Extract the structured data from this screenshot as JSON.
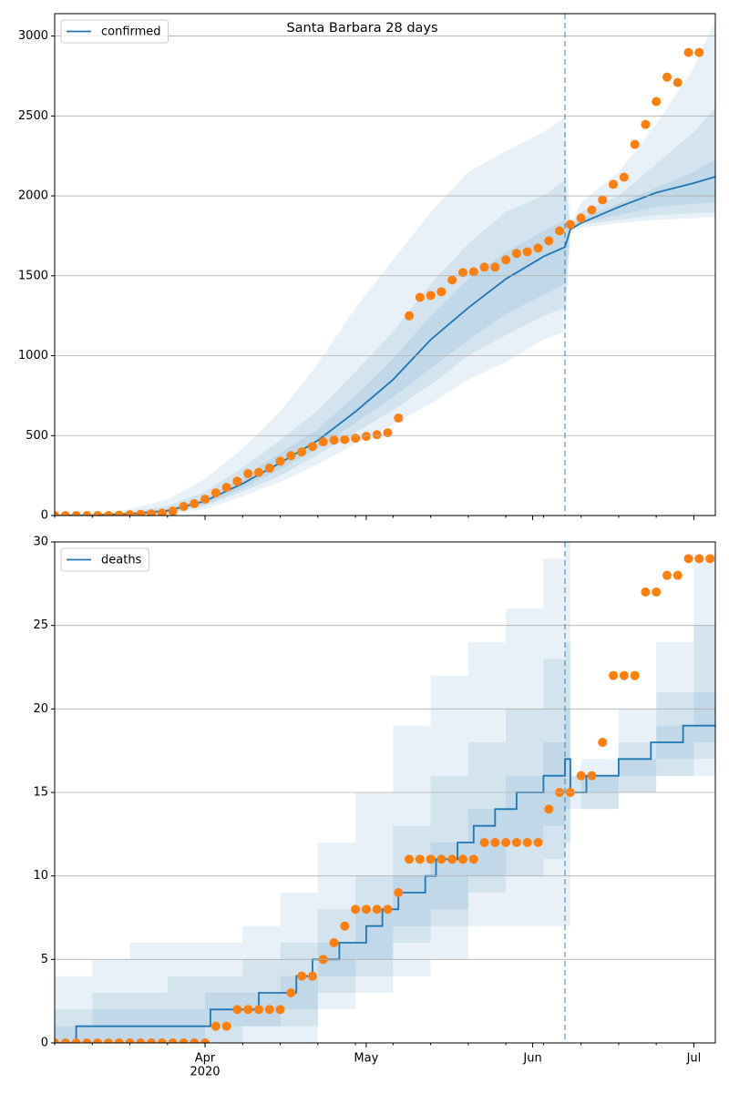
{
  "chart_data": [
    {
      "type": "line",
      "title": "Santa Barbara 28 days",
      "step": false,
      "grid": "y",
      "legend": "upper left",
      "xlim": [
        0,
        123
      ],
      "xticks": [
        28,
        58,
        89,
        119
      ],
      "ylim": [
        0,
        3140
      ],
      "yticks": [
        0,
        500,
        1000,
        1500,
        2000,
        2500,
        3000
      ],
      "vline": {
        "x": 95,
        "color": "#1f77b4",
        "style": "dashed"
      },
      "series": [
        {
          "name": "confirmed",
          "color": "#1f77b4",
          "x": [
            0,
            7,
            14,
            21,
            28,
            35,
            42,
            49,
            56,
            63,
            70,
            77,
            84,
            91,
            95,
            96,
            98,
            105,
            112,
            119,
            123
          ],
          "values": [
            0,
            2,
            10,
            30,
            90,
            200,
            330,
            470,
            650,
            850,
            1100,
            1300,
            1480,
            1620,
            1680,
            1790,
            1830,
            1930,
            2020,
            2080,
            2120
          ]
        }
      ],
      "observed": {
        "color": "#ff7f0e",
        "x": [
          0,
          2,
          4,
          6,
          8,
          10,
          12,
          14,
          16,
          18,
          20,
          22,
          24,
          26,
          28,
          30,
          32,
          34,
          36,
          38,
          40,
          42,
          44,
          46,
          48,
          50,
          52,
          54,
          56,
          58,
          60,
          62,
          64,
          66,
          68,
          70,
          72,
          74,
          76,
          78,
          80,
          82,
          84,
          86,
          88,
          90,
          92,
          94,
          96,
          98,
          100,
          102,
          104,
          106,
          108,
          110,
          112,
          114,
          116,
          118,
          120
        ],
        "values": [
          0,
          0,
          0,
          0,
          0,
          0,
          2,
          5,
          8,
          10,
          15,
          28,
          57,
          74,
          102,
          142,
          176,
          215,
          262,
          270,
          296,
          340,
          375,
          398,
          432,
          461,
          472,
          475,
          484,
          495,
          506,
          518,
          610,
          1250,
          1365,
          1377,
          1400,
          1474,
          1520,
          1525,
          1554,
          1554,
          1600,
          1640,
          1650,
          1673,
          1719,
          1781,
          1821,
          1861,
          1912,
          1975,
          2072,
          2117,
          2322,
          2447,
          2590,
          2743,
          2709,
          2897,
          2897
        ]
      },
      "bands": [
        {
          "color": "#1f77b4",
          "x": [
            0,
            7,
            14,
            21,
            28,
            35,
            42,
            49,
            56,
            63,
            70,
            77,
            84,
            91,
            95,
            96,
            98,
            105,
            112,
            119,
            123
          ],
          "lower": [
            0,
            0,
            0,
            5,
            40,
            120,
            210,
            320,
            450,
            570,
            700,
            850,
            960,
            1100,
            1150,
            1780,
            1800,
            1830,
            1850,
            1860,
            1870
          ],
          "upper": [
            0,
            10,
            40,
            100,
            230,
            420,
            650,
            950,
            1300,
            1600,
            1900,
            2150,
            2280,
            2400,
            2490,
            1810,
            1960,
            2150,
            2450,
            2800,
            3100
          ]
        },
        {
          "color": "#1f77b4",
          "x": [
            0,
            7,
            14,
            21,
            28,
            35,
            42,
            49,
            56,
            63,
            70,
            77,
            84,
            91,
            95,
            96,
            98,
            105,
            112,
            119,
            123
          ],
          "lower": [
            0,
            0,
            3,
            15,
            60,
            150,
            250,
            380,
            520,
            660,
            820,
            1000,
            1130,
            1250,
            1300,
            1785,
            1820,
            1850,
            1880,
            1890,
            1900
          ],
          "upper": [
            0,
            5,
            25,
            60,
            150,
            300,
            470,
            660,
            900,
            1150,
            1450,
            1700,
            1900,
            2000,
            2100,
            1800,
            1900,
            2000,
            2200,
            2400,
            2550
          ]
        },
        {
          "color": "#1f77b4",
          "x": [
            0,
            7,
            14,
            21,
            28,
            35,
            42,
            49,
            56,
            63,
            70,
            77,
            84,
            91,
            95,
            96,
            98,
            105,
            112,
            119,
            123
          ],
          "lower": [
            0,
            0,
            5,
            20,
            70,
            170,
            290,
            420,
            580,
            740,
            920,
            1100,
            1260,
            1380,
            1450,
            1788,
            1830,
            1880,
            1930,
            1950,
            1960
          ],
          "upper": [
            0,
            3,
            15,
            40,
            110,
            240,
            390,
            540,
            750,
            980,
            1250,
            1480,
            1650,
            1780,
            1850,
            1795,
            1860,
            1950,
            2050,
            2150,
            2230
          ]
        }
      ]
    },
    {
      "type": "line",
      "step": true,
      "grid": "y",
      "legend": "upper left",
      "xlim": [
        0,
        123
      ],
      "xticks": [
        {
          "value": 28,
          "label": "Apr"
        },
        {
          "value": 58,
          "label": "May"
        },
        {
          "value": 89,
          "label": "Jun"
        },
        {
          "value": 119,
          "label": "Jul"
        }
      ],
      "x_year": "2020",
      "ylim": [
        0,
        30
      ],
      "yticks": [
        0,
        5,
        10,
        15,
        20,
        25,
        30
      ],
      "vline": {
        "x": 95,
        "color": "#1f77b4",
        "style": "dashed"
      },
      "series": [
        {
          "name": "deaths",
          "color": "#1f77b4",
          "x": [
            0,
            4,
            29,
            38,
            45,
            48,
            53,
            58,
            61,
            64,
            69,
            71,
            75,
            78,
            82,
            86,
            91,
            95,
            96,
            99,
            105,
            111,
            117,
            123
          ],
          "values": [
            0,
            1,
            2,
            3,
            4,
            5,
            6,
            7,
            8,
            9,
            10,
            11,
            12,
            13,
            14,
            15,
            16,
            17,
            15,
            16,
            17,
            18,
            19,
            19
          ]
        }
      ],
      "observed": {
        "color": "#ff7f0e",
        "x": [
          0,
          2,
          4,
          6,
          8,
          10,
          12,
          14,
          16,
          18,
          20,
          22,
          24,
          26,
          28,
          30,
          32,
          34,
          36,
          38,
          40,
          42,
          44,
          46,
          48,
          50,
          52,
          54,
          56,
          58,
          60,
          62,
          64,
          66,
          68,
          70,
          72,
          74,
          76,
          78,
          80,
          82,
          84,
          86,
          88,
          90,
          92,
          94,
          96,
          98,
          100,
          102,
          104,
          106,
          108,
          110,
          112,
          114,
          116,
          118,
          120,
          122
        ],
        "values": [
          0,
          0,
          0,
          0,
          0,
          0,
          0,
          0,
          0,
          0,
          0,
          0,
          0,
          0,
          0,
          1,
          1,
          2,
          2,
          2,
          2,
          2,
          3,
          4,
          4,
          5,
          6,
          7,
          8,
          8,
          8,
          8,
          9,
          11,
          11,
          11,
          11,
          11,
          11,
          11,
          12,
          12,
          12,
          12,
          12,
          12,
          14,
          15,
          15,
          16,
          16,
          18,
          22,
          22,
          22,
          27,
          27,
          28,
          28,
          29,
          29,
          29
        ]
      },
      "bands": [
        {
          "color": "#1f77b4",
          "x": [
            0,
            7,
            14,
            21,
            28,
            35,
            42,
            49,
            56,
            63,
            70,
            77,
            84,
            91,
            95,
            96,
            98,
            105,
            112,
            119,
            123
          ],
          "lower": [
            0,
            0,
            0,
            0,
            0,
            0,
            0,
            2,
            3,
            4,
            5,
            7,
            7,
            7,
            7,
            14,
            14,
            15,
            16,
            16,
            16
          ],
          "upper": [
            4,
            5,
            6,
            6,
            6,
            7,
            9,
            12,
            15,
            19,
            22,
            24,
            26,
            29,
            30,
            16,
            17,
            20,
            24,
            29,
            31
          ]
        },
        {
          "color": "#1f77b4",
          "x": [
            0,
            7,
            14,
            21,
            28,
            35,
            42,
            49,
            56,
            63,
            70,
            77,
            84,
            91,
            95,
            96,
            98,
            105,
            112,
            119,
            123
          ],
          "lower": [
            0,
            0,
            0,
            0,
            0,
            1,
            1,
            3,
            4,
            6,
            7,
            9,
            10,
            11,
            12,
            15,
            14,
            15,
            16,
            17,
            17
          ],
          "upper": [
            2,
            3,
            3,
            4,
            4,
            5,
            6,
            8,
            10,
            13,
            16,
            18,
            20,
            23,
            24,
            16,
            16,
            18,
            21,
            25,
            25
          ]
        },
        {
          "color": "#1f77b4",
          "x": [
            0,
            7,
            14,
            21,
            28,
            35,
            42,
            49,
            56,
            63,
            70,
            77,
            84,
            91,
            95,
            96,
            98,
            105,
            112,
            119,
            123
          ],
          "lower": [
            0,
            0,
            0,
            0,
            1,
            1,
            2,
            4,
            5,
            7,
            8,
            10,
            12,
            13,
            14,
            15,
            15,
            16,
            17,
            18,
            18
          ],
          "upper": [
            1,
            2,
            2,
            2,
            3,
            3,
            4,
            6,
            8,
            10,
            12,
            14,
            16,
            18,
            20,
            15,
            16,
            17,
            19,
            21,
            21
          ]
        }
      ]
    }
  ]
}
